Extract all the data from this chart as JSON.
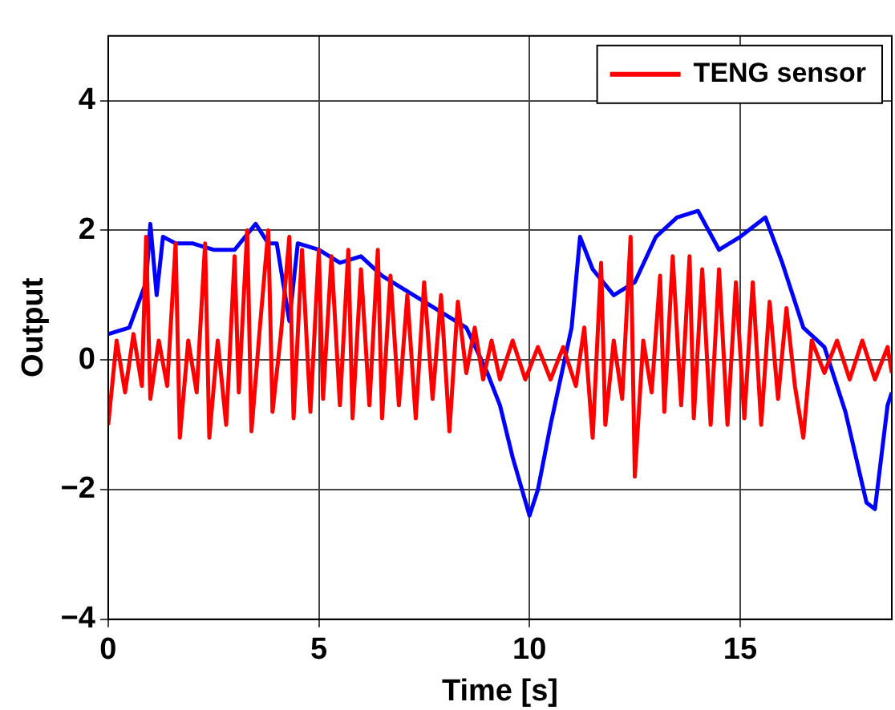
{
  "chart_data": {
    "type": "line",
    "xlabel": "Time [s]",
    "ylabel": "Output",
    "xlim": [
      0,
      18.6
    ],
    "ylim": [
      -4,
      5
    ],
    "xticks": [
      0,
      5,
      10,
      15
    ],
    "yticks": [
      -4,
      -2,
      0,
      2,
      4
    ],
    "grid": true,
    "legend": "top right",
    "marker": "none",
    "line_style": "solid",
    "series": [
      {
        "name": "TENG sensor",
        "color": "#ff0000",
        "x": [
          0,
          0.2,
          0.4,
          0.6,
          0.8,
          0.9,
          1.0,
          1.2,
          1.4,
          1.6,
          1.7,
          1.9,
          2.1,
          2.3,
          2.4,
          2.6,
          2.8,
          3.0,
          3.1,
          3.3,
          3.4,
          3.6,
          3.8,
          3.9,
          4.1,
          4.3,
          4.4,
          4.6,
          4.8,
          5.0,
          5.1,
          5.3,
          5.5,
          5.7,
          5.8,
          6.0,
          6.2,
          6.4,
          6.5,
          6.7,
          6.9,
          7.1,
          7.3,
          7.5,
          7.7,
          7.9,
          8.1,
          8.3,
          8.5,
          8.7,
          8.9,
          9.1,
          9.3,
          9.6,
          9.9,
          10.2,
          10.5,
          10.8,
          11.1,
          11.3,
          11.5,
          11.7,
          11.8,
          12.0,
          12.2,
          12.4,
          12.5,
          12.7,
          12.9,
          13.1,
          13.2,
          13.4,
          13.6,
          13.8,
          13.9,
          14.1,
          14.3,
          14.5,
          14.7,
          14.9,
          15.1,
          15.3,
          15.5,
          15.7,
          15.9,
          16.1,
          16.3,
          16.5,
          16.7,
          17.0,
          17.3,
          17.6,
          17.9,
          18.2,
          18.5,
          18.6
        ],
        "values": [
          -1.0,
          0.3,
          -0.5,
          0.4,
          -0.4,
          1.9,
          -0.6,
          0.3,
          -0.4,
          1.8,
          -1.2,
          0.3,
          -0.5,
          1.8,
          -1.2,
          0.3,
          -1.0,
          1.6,
          -0.5,
          2.0,
          -1.1,
          0.5,
          2.0,
          -0.8,
          0.4,
          1.9,
          -0.9,
          1.7,
          -0.8,
          1.7,
          -0.6,
          1.6,
          -0.7,
          1.7,
          -0.9,
          1.4,
          -0.7,
          1.7,
          -0.9,
          1.3,
          -0.7,
          1.0,
          -0.9,
          1.2,
          -0.6,
          1.0,
          -1.1,
          0.9,
          -0.2,
          0.5,
          -0.3,
          0.3,
          -0.3,
          0.3,
          -0.3,
          0.2,
          -0.3,
          0.2,
          -0.4,
          0.5,
          -1.2,
          1.5,
          -1.0,
          0.3,
          -0.6,
          1.9,
          -1.8,
          0.3,
          -0.5,
          1.3,
          -0.8,
          1.6,
          -0.7,
          1.6,
          -0.9,
          1.4,
          -1.0,
          1.4,
          -1.0,
          1.2,
          -0.9,
          1.2,
          -1.0,
          0.9,
          -0.6,
          0.8,
          -0.4,
          -1.2,
          0.3,
          -0.2,
          0.3,
          -0.3,
          0.3,
          -0.3,
          0.2,
          -0.2
        ]
      },
      {
        "color": "#0000ff",
        "x": [
          0,
          0.5,
          0.9,
          1.0,
          1.15,
          1.3,
          1.6,
          2.0,
          2.5,
          3.0,
          3.5,
          3.8,
          4.0,
          4.3,
          4.5,
          5.0,
          5.5,
          6.0,
          6.5,
          7.0,
          7.5,
          8.0,
          8.5,
          9.0,
          9.3,
          9.6,
          10.0,
          10.2,
          10.5,
          11.0,
          11.2,
          11.5,
          12.0,
          12.5,
          13.0,
          13.5,
          14.0,
          14.5,
          15.0,
          15.6,
          16.0,
          16.5,
          17.0,
          17.5,
          18.0,
          18.2,
          18.5,
          18.6
        ],
        "values": [
          0.4,
          0.5,
          1.2,
          2.1,
          1.0,
          1.9,
          1.8,
          1.8,
          1.7,
          1.7,
          2.1,
          1.8,
          1.8,
          0.6,
          1.8,
          1.7,
          1.5,
          1.6,
          1.3,
          1.1,
          0.9,
          0.7,
          0.5,
          -0.2,
          -0.7,
          -1.5,
          -2.4,
          -2.0,
          -1.0,
          0.5,
          1.9,
          1.4,
          1.0,
          1.2,
          1.9,
          2.2,
          2.3,
          1.7,
          1.9,
          2.2,
          1.5,
          0.5,
          0.2,
          -0.8,
          -2.2,
          -2.3,
          -0.7,
          -0.5
        ]
      }
    ]
  }
}
